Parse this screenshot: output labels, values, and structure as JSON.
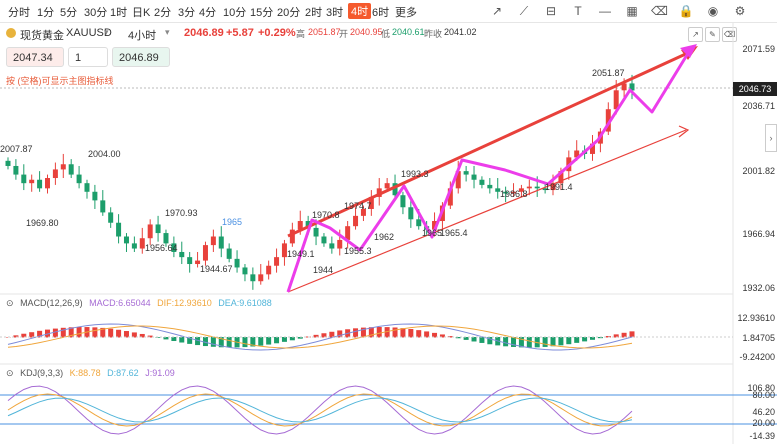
{
  "toolbar": {
    "timeframes": [
      "分时",
      "1分",
      "5分",
      "30分",
      "1时",
      "日K",
      "2分",
      "3分",
      "4分",
      "10分",
      "15分",
      "20分",
      "2时",
      "3时",
      "4时",
      "6时",
      "更多"
    ],
    "active_timeframe": "4时",
    "tool_icons": [
      "trend-line-icon",
      "ray-line-icon",
      "ruler-icon",
      "text-tool-icon",
      "horizontal-line-icon",
      "grid-icon",
      "eraser-icon",
      "lock-icon",
      "eye-icon",
      "settings-icon"
    ]
  },
  "instrument": {
    "name": "现货黄金",
    "symbol": "XAUUSD",
    "period": "4小时",
    "price": "2046.89",
    "change": "+5.87",
    "change_pct": "+0.29%",
    "high_label": "高",
    "high": "2051.87",
    "open_label": "开",
    "open": "2040.95",
    "low_label": "低",
    "low": "2040.61",
    "prev_close_label": "昨收",
    "prev_close": "2041.02"
  },
  "trade": {
    "sell_price": "2047.34",
    "lots": "1",
    "buy_price": "2046.89"
  },
  "hint": "按 (空格)可显示主图指标线",
  "price_axis": {
    "ticks": [
      "2071.59",
      "2036.71",
      "2001.82",
      "1966.94",
      "1932.06"
    ],
    "current": "2046.73"
  },
  "chart_labels": [
    "2007.87",
    "2004.00",
    "1969.80",
    "1970.93",
    "1956.64",
    "1944.67",
    "1965",
    "1949.1",
    "1944",
    "1970.8",
    "1974.7",
    "1955.3",
    "1962",
    "1993.3",
    "1965",
    "1965.4",
    "1986.8",
    "1991.4",
    "2051.87"
  ],
  "macd": {
    "title": "MACD(12,26,9)",
    "macd_label": "MACD:6.65044",
    "dif_label": "DIF:12.93610",
    "dea_label": "DEA:9.61088",
    "ticks": [
      "12.93610",
      "1.84705",
      "-9.24200"
    ]
  },
  "kdj": {
    "title": "KDJ(9,3,3)",
    "k_label": "K:88.78",
    "d_label": "D:87.62",
    "j_label": "J:91.09",
    "ticks": [
      "106.80",
      "80.00",
      "46.20",
      "20.00",
      "-14.39"
    ]
  },
  "colors": {
    "up": "#e8413b",
    "down": "#1c9e6b",
    "channel": "#e8413b",
    "arrows": "#ec3dea",
    "dif": "#7d8bd9",
    "dea": "#f0a63c",
    "k": "#f0a63c",
    "d": "#52b5d9",
    "j": "#a66bd4",
    "guide": "#4a90e2"
  },
  "chart_data": {
    "type": "candlestick",
    "interval": "4小时",
    "yrange": [
      1932.06,
      2071.59
    ],
    "close_series": [
      2003,
      1998,
      1993,
      1995,
      1990,
      1996,
      2001,
      2004,
      1998,
      1993,
      1988,
      1983,
      1976,
      1970,
      1962,
      1958,
      1955,
      1961,
      1969,
      1964,
      1958,
      1953,
      1950,
      1946,
      1948,
      1957,
      1962,
      1955,
      1949,
      1944,
      1940,
      1936,
      1940,
      1945,
      1950,
      1958,
      1966,
      1971,
      1967,
      1962,
      1958,
      1955,
      1960,
      1968,
      1974,
      1978,
      1985,
      1990,
      1993,
      1986,
      1979,
      1972,
      1968,
      1966,
      1971,
      1980,
      1990,
      2000,
      1998,
      1995,
      1992,
      1990,
      1988,
      1987,
      1988,
      1990,
      1991,
      1990,
      1989,
      1993,
      2000,
      2008,
      2012,
      2010,
      2016,
      2023,
      2036,
      2047,
      2051,
      2046.89
    ],
    "macd": {
      "dif": 12.9361,
      "dea": 9.61088,
      "hist": 6.65044
    },
    "kdj": {
      "k": 88.78,
      "d": 87.62,
      "j": 91.09
    }
  }
}
